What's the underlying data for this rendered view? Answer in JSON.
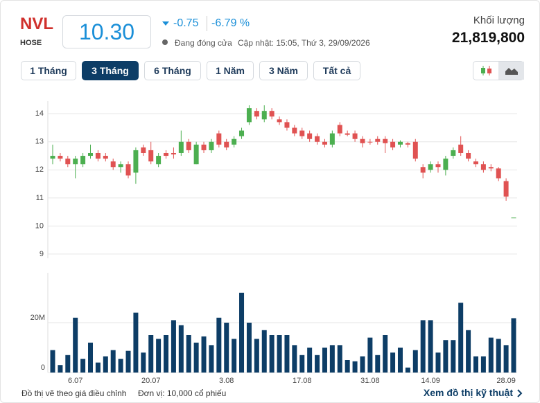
{
  "header": {
    "symbol": "NVL",
    "exchange": "HOSE",
    "price": "10.30",
    "change": "-0.75",
    "change_pct": "-6.79 %",
    "status": "Đang đóng cửa",
    "updated": "Cập nhật: 15:05, Thứ 3, 29/09/2026",
    "volume_label": "Khối lượng",
    "volume": "21,819,800"
  },
  "tabs": [
    "1 Tháng",
    "3 Tháng",
    "6 Tháng",
    "1 Năm",
    "3 Năm",
    "Tất cả"
  ],
  "active_tab": 1,
  "footer": {
    "note": "Đồ thị vẽ theo giá điều chỉnh",
    "unit": "Đơn vị: 10,000 cổ phiếu",
    "link": "Xem đồ thị kỹ thuật"
  },
  "chart_data": {
    "type": "candlestick",
    "categories": [
      null,
      null,
      null,
      "6.07",
      null,
      null,
      null,
      null,
      null,
      null,
      null,
      null,
      null,
      "20.07",
      null,
      null,
      null,
      null,
      null,
      null,
      null,
      null,
      null,
      "3.08",
      null,
      null,
      null,
      null,
      null,
      null,
      null,
      null,
      null,
      "17.08",
      null,
      null,
      null,
      null,
      null,
      null,
      null,
      null,
      "31.08",
      null,
      null,
      null,
      null,
      null,
      null,
      null,
      "14.09",
      null,
      null,
      null,
      null,
      null,
      null,
      null,
      null,
      null,
      "28.09",
      null
    ],
    "open": [
      12.4,
      12.5,
      12.4,
      12.2,
      12.2,
      12.5,
      12.6,
      12.5,
      12.3,
      12.1,
      12.2,
      11.9,
      12.8,
      12.7,
      12.2,
      12.6,
      12.6,
      12.6,
      13.0,
      12.2,
      12.9,
      12.7,
      13.3,
      13.0,
      12.9,
      13.2,
      13.7,
      14.1,
      13.8,
      14.1,
      13.8,
      13.7,
      13.5,
      13.4,
      13.3,
      13.2,
      13.0,
      12.9,
      13.6,
      13.3,
      13.3,
      13.1,
      13.0,
      13.1,
      13.1,
      13.0,
      12.9,
      12.95,
      13.0,
      12.1,
      12.0,
      12.2,
      12.0,
      12.5,
      12.9,
      12.6,
      12.3,
      12.2,
      12.1,
      12.05,
      11.6,
      10.3
    ],
    "high": [
      12.9,
      12.6,
      12.5,
      12.5,
      12.6,
      12.9,
      12.7,
      12.6,
      12.4,
      12.3,
      12.3,
      12.8,
      12.9,
      13.0,
      12.6,
      12.7,
      12.8,
      13.4,
      13.1,
      13.0,
      13.0,
      13.1,
      13.4,
      13.1,
      13.2,
      13.5,
      14.3,
      14.2,
      14.3,
      14.2,
      13.9,
      13.8,
      13.6,
      13.5,
      13.4,
      13.3,
      13.1,
      13.4,
      13.7,
      13.4,
      13.4,
      13.2,
      13.1,
      13.2,
      13.2,
      13.1,
      13.05,
      13.0,
      13.1,
      12.2,
      12.3,
      12.3,
      12.5,
      12.8,
      13.2,
      12.7,
      12.4,
      12.3,
      12.2,
      12.1,
      11.7,
      10.3
    ],
    "low": [
      12.2,
      12.3,
      12.1,
      11.7,
      12.1,
      12.4,
      12.3,
      12.3,
      12.0,
      11.9,
      11.7,
      11.5,
      12.5,
      12.2,
      12.1,
      12.4,
      12.4,
      12.5,
      12.6,
      12.2,
      12.6,
      12.6,
      12.8,
      12.7,
      12.8,
      13.1,
      13.6,
      13.8,
      13.7,
      13.8,
      13.6,
      13.4,
      13.2,
      13.1,
      13.0,
      12.9,
      12.8,
      12.8,
      13.2,
      13.2,
      13.0,
      12.8,
      12.9,
      12.9,
      12.6,
      12.7,
      12.8,
      12.8,
      12.3,
      11.7,
      11.9,
      11.9,
      11.8,
      12.4,
      12.5,
      12.3,
      12.1,
      11.9,
      11.95,
      11.6,
      10.9,
      10.3
    ],
    "close": [
      12.5,
      12.4,
      12.2,
      12.4,
      12.5,
      12.6,
      12.4,
      12.4,
      12.1,
      12.2,
      11.8,
      12.7,
      12.6,
      12.3,
      12.5,
      12.5,
      12.55,
      13.0,
      12.7,
      12.9,
      12.7,
      13.0,
      12.9,
      12.8,
      13.1,
      13.4,
      14.2,
      13.9,
      14.1,
      13.9,
      13.7,
      13.5,
      13.3,
      13.2,
      13.1,
      13.0,
      12.9,
      13.3,
      13.3,
      13.25,
      13.1,
      12.95,
      12.98,
      13.0,
      12.95,
      12.8,
      13.0,
      12.9,
      12.4,
      11.9,
      12.2,
      12.1,
      12.4,
      12.7,
      12.6,
      12.4,
      12.2,
      12.0,
      12.05,
      11.7,
      11.05,
      10.3
    ],
    "volume": [
      9,
      3,
      7,
      22,
      5.5,
      12,
      4,
      6.5,
      9,
      5.5,
      8.7,
      24,
      8,
      15,
      13.5,
      15,
      21,
      19,
      15,
      12,
      14.5,
      11,
      22,
      20,
      13.5,
      32,
      20,
      13.5,
      17,
      15,
      15,
      15,
      11,
      7,
      10,
      7,
      10,
      11,
      11,
      5,
      4.5,
      6.5,
      14,
      7,
      15,
      8,
      10,
      2,
      9,
      21,
      21,
      8,
      13,
      13,
      28,
      17,
      6.5,
      6.5,
      14,
      13.5,
      11,
      21.8
    ],
    "up_color": "#4caf50",
    "down_color": "#e05252",
    "volume_color": "#0d3d66",
    "ylim": [
      8.85,
      14.45
    ],
    "yticks": [
      9,
      10,
      11,
      12,
      13,
      14
    ],
    "volume_ylim": [
      0,
      40
    ],
    "volume_yticks": [
      0,
      {
        "value": 20,
        "label": "20M"
      }
    ],
    "grid": true
  }
}
